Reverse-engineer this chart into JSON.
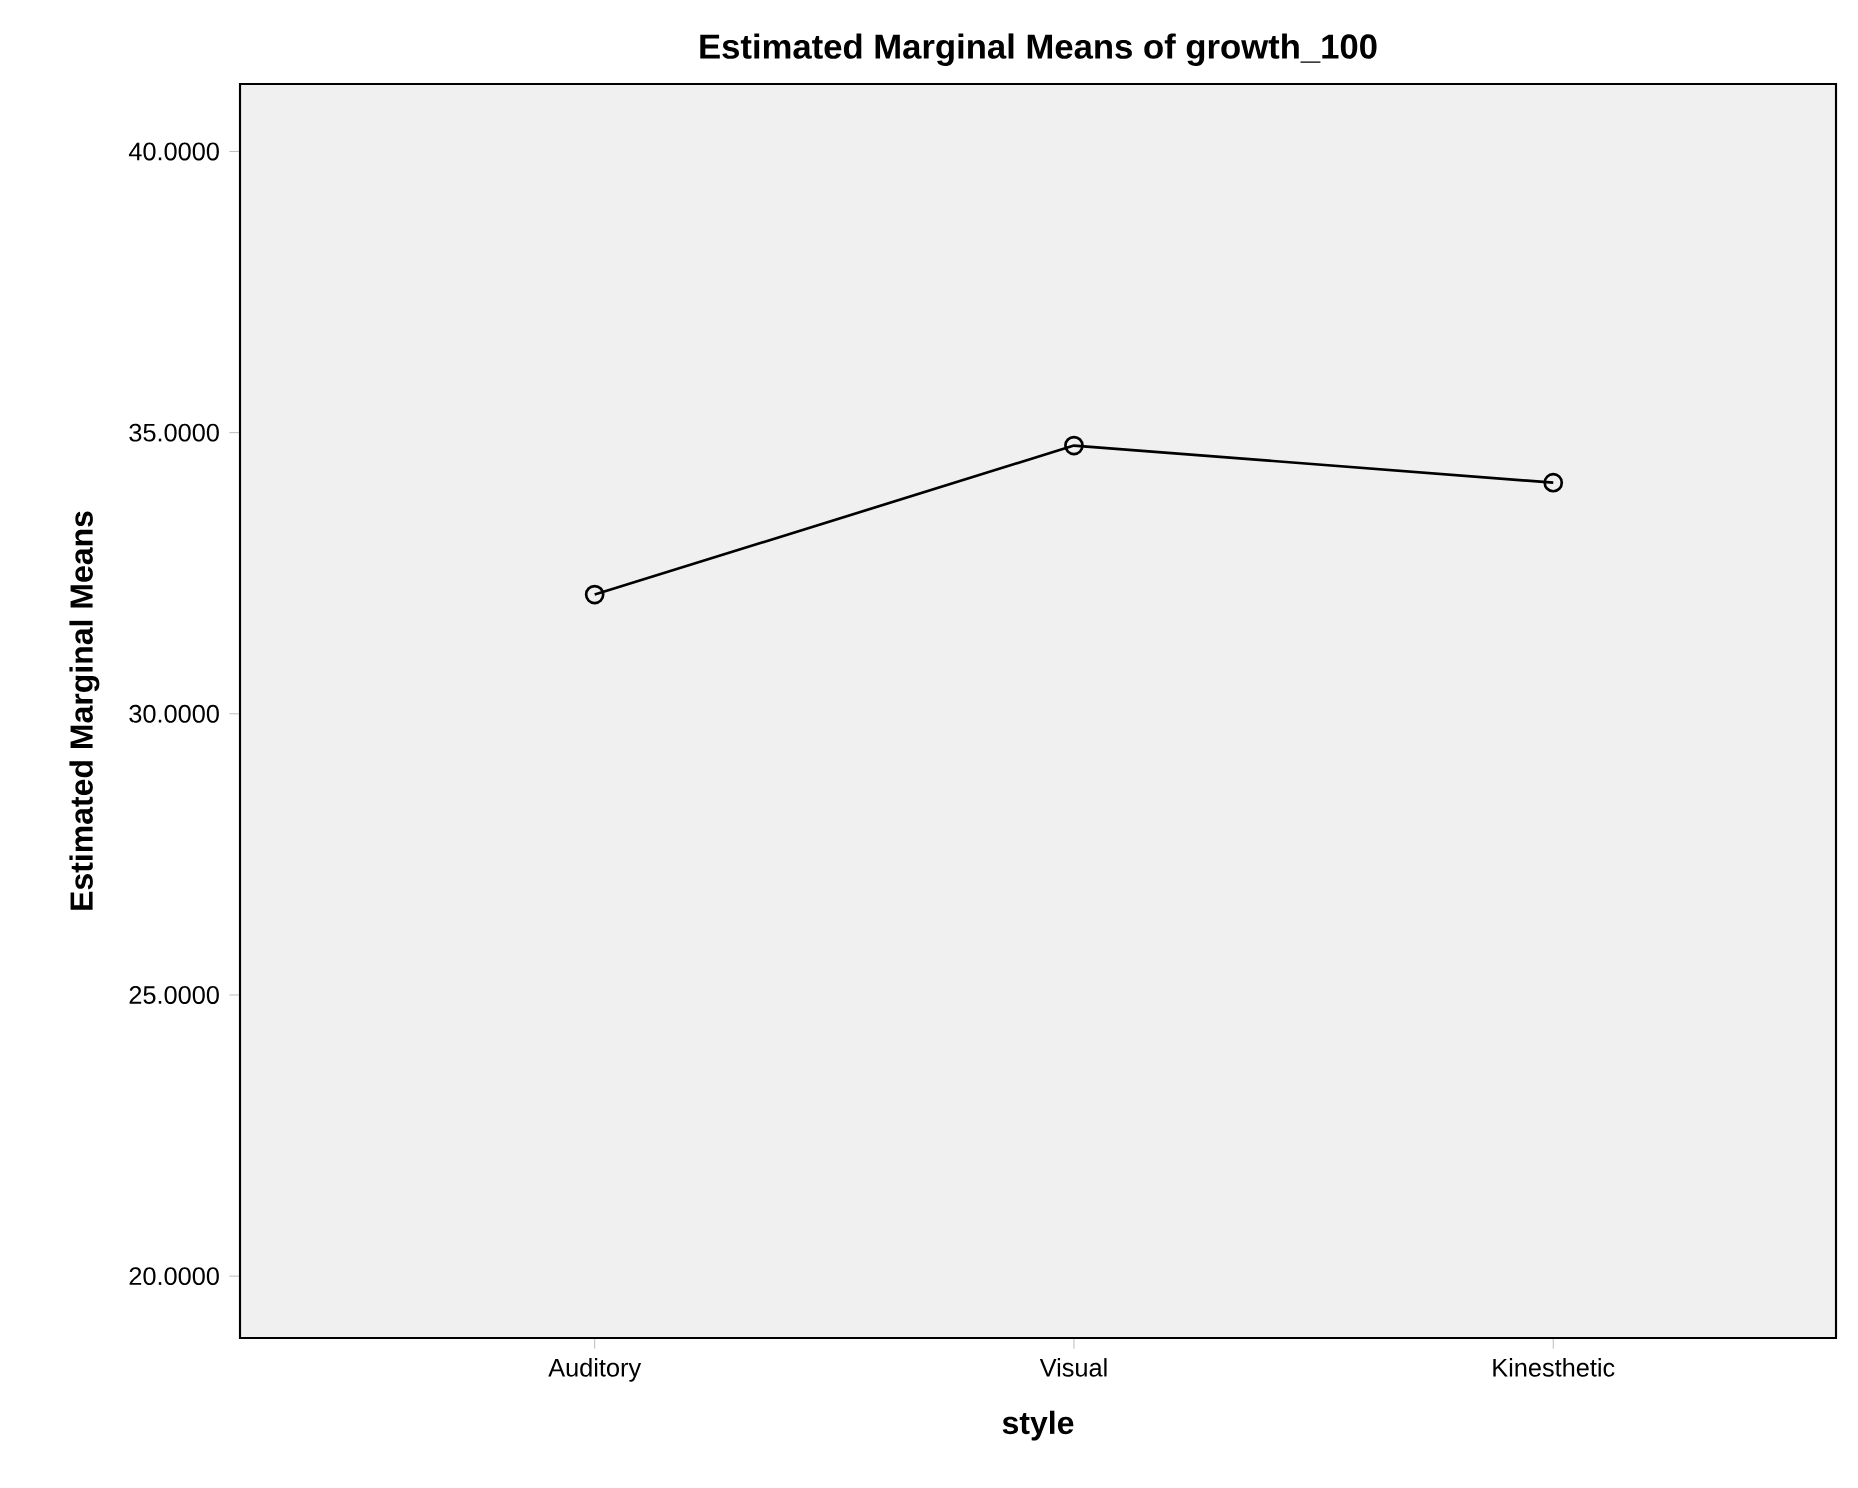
{
  "chart_data": {
    "type": "line",
    "title": "Estimated Marginal Means of growth_100",
    "xlabel": "style",
    "ylabel": "Estimated Marginal Means",
    "categories": [
      "Auditory",
      "Visual",
      "Kinesthetic"
    ],
    "series": [
      {
        "color": "#000000",
        "values": [
          32.12,
          34.77,
          34.11
        ]
      }
    ],
    "ylim": [
      18.9,
      41.2
    ],
    "yticks": [
      {
        "value": 20,
        "label": "20.0000"
      },
      {
        "value": 25,
        "label": "25.0000"
      },
      {
        "value": 30,
        "label": "30.0000"
      },
      {
        "value": 35,
        "label": "35.0000"
      },
      {
        "value": 40,
        "label": "40.0000"
      }
    ],
    "marker": "circle",
    "line_style": "solid",
    "grid": false
  }
}
